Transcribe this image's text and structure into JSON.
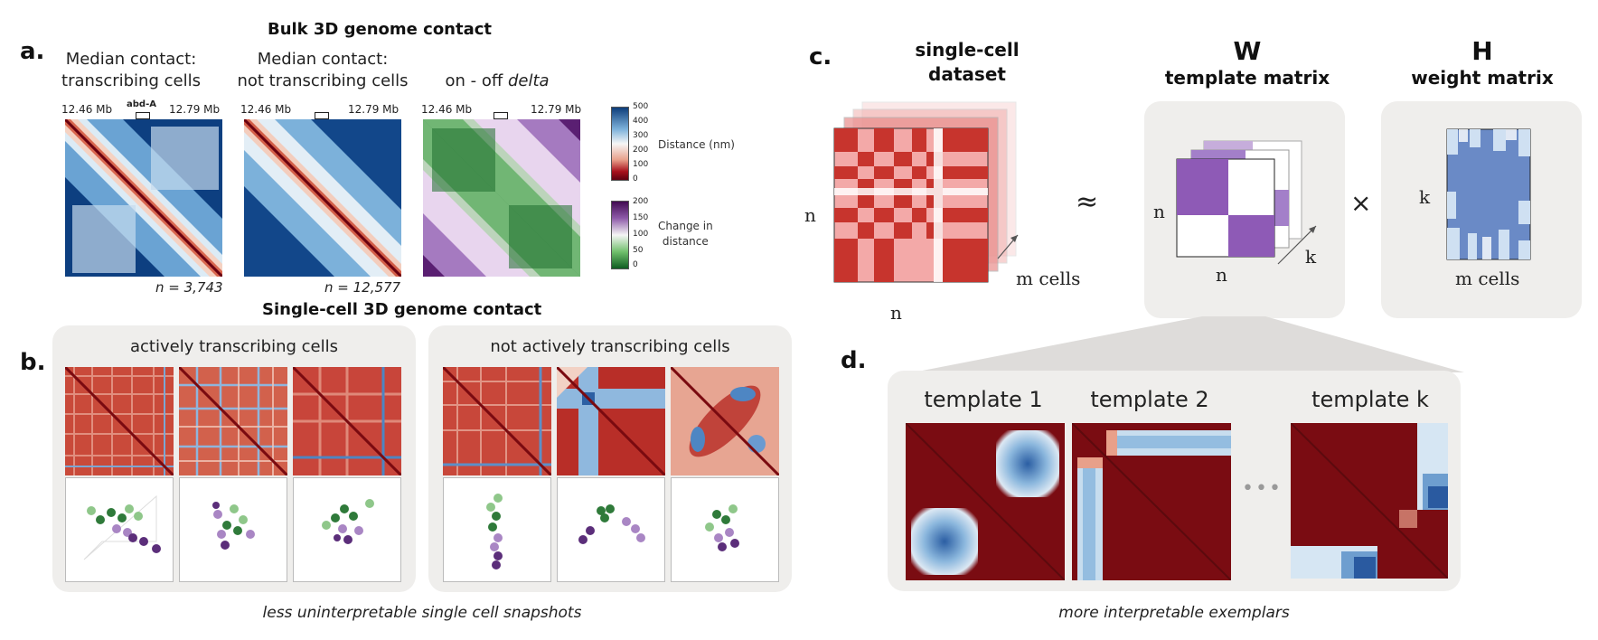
{
  "panel_a": {
    "letter": "a.",
    "title": "Bulk 3D genome contact",
    "maps": [
      {
        "title_line1": "Median contact:",
        "title_line2": "transcribing cells",
        "left_tick": "12.46 Mb",
        "right_tick": "12.79 Mb",
        "region_label": "abd-A",
        "n_label": "n = 3,743"
      },
      {
        "title_line1": "Median contact:",
        "title_line2": "not transcribing cells",
        "left_tick": "12.46 Mb",
        "right_tick": "12.79 Mb",
        "region_label": "",
        "n_label": "n = 12,577"
      },
      {
        "title_prefix": "on - off ",
        "title_italic": "delta",
        "left_tick": "12.46 Mb",
        "right_tick": "12.79 Mb"
      }
    ],
    "colorbar_distance": {
      "ticks": [
        "500",
        "400",
        "300",
        "200",
        "100",
        "0"
      ],
      "label": "Distance (nm)",
      "colors": [
        "#0b3a78",
        "#4f8fc3",
        "#f6f6f6",
        "#e8a08a",
        "#a8101c",
        "#5a0010"
      ]
    },
    "colorbar_change": {
      "ticks": [
        "200",
        "150",
        "100",
        "50",
        "0"
      ],
      "label_line1": "Change in",
      "label_line2": "distance",
      "colors": [
        "#3f0a4f",
        "#8d59a8",
        "#f5f5f5",
        "#6fbf6b",
        "#0d5a1f"
      ]
    }
  },
  "panel_b": {
    "letter": "b.",
    "title": "Single-cell 3D genome contact",
    "group_left": "actively transcribing cells",
    "group_right": "not actively transcribing cells",
    "caption": "less uninterpretable single cell snapshots"
  },
  "panel_c": {
    "letter": "c.",
    "dataset_title_line1": "single-cell",
    "dataset_title_line2": "dataset",
    "W_letter": "W",
    "W_title": "template matrix",
    "H_letter": "H",
    "H_title": "weight matrix",
    "approx_symbol": "≈",
    "times_symbol": "×",
    "n_label": "n",
    "m_cells_label": "m cells",
    "k_label": "k"
  },
  "panel_d": {
    "letter": "d.",
    "templates": [
      "template 1",
      "template 2",
      "template k"
    ],
    "ellipsis": "•••",
    "caption": "more interpretable exemplars"
  },
  "colors": {
    "box_gray": "#efeeec",
    "dark_red": "#7a0c12",
    "mid_red": "#c7342d",
    "light_pink": "#f3a9a8",
    "purple": "#8e5ab6",
    "blue_h": "#6a8ac6",
    "light_blue_h": "#cfe0f2"
  }
}
